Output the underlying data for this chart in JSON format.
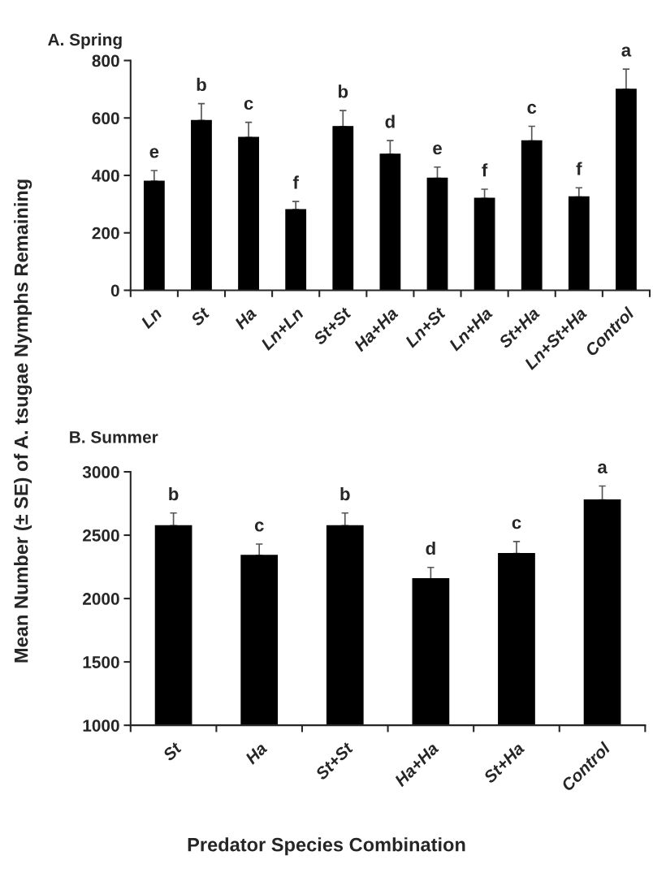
{
  "chart_data": [
    {
      "type": "bar",
      "title": "A. Spring",
      "ylabel": "Mean Number (± SE) of A. tsugae Nymphs Remaining",
      "categories": [
        "Ln",
        "St",
        "Ha",
        "Ln+Ln",
        "St+St",
        "Ha+Ha",
        "Ln+St",
        "Ln+Ha",
        "St+Ha",
        "Ln+St+Ha",
        "Control"
      ],
      "values": [
        380,
        591,
        532,
        281,
        570,
        474,
        390,
        320,
        520,
        325,
        700
      ],
      "errors": [
        37,
        59,
        53,
        28,
        56,
        47,
        39,
        32,
        51,
        32,
        70
      ],
      "color": "#000000",
      "ylim": [
        0,
        800
      ],
      "yticks": [
        0,
        200,
        400,
        600,
        800
      ],
      "grid": false,
      "annotations": [
        {
          "text": "e",
          "x": "Ln",
          "y": 380
        },
        {
          "text": "b",
          "x": "St",
          "y": 591
        },
        {
          "text": "c",
          "x": "Ha",
          "y": 532
        },
        {
          "text": "f",
          "x": "Ln+Ln",
          "y": 281
        },
        {
          "text": "b",
          "x": "St+St",
          "y": 570
        },
        {
          "text": "d",
          "x": "Ha+Ha",
          "y": 474
        },
        {
          "text": "e",
          "x": "Ln+St",
          "y": 390
        },
        {
          "text": "f",
          "x": "Ln+Ha",
          "y": 320
        },
        {
          "text": "c",
          "x": "St+Ha",
          "y": 520
        },
        {
          "text": "f",
          "x": "Ln+St+Ha",
          "y": 325
        },
        {
          "text": "a",
          "x": "Control",
          "y": 700
        }
      ]
    },
    {
      "type": "bar",
      "title": "B. Summer",
      "xlabel": "Predator Species Combination",
      "categories": [
        "St",
        "Ha",
        "St+St",
        "Ha+Ha",
        "St+Ha",
        "Control"
      ],
      "values": [
        2575,
        2340,
        2575,
        2156,
        2355,
        2778
      ],
      "errors": [
        100,
        90,
        100,
        90,
        95,
        110
      ],
      "color": "#000000",
      "ylim": [
        1000,
        3000
      ],
      "yticks": [
        1000,
        1500,
        2000,
        2500,
        3000
      ],
      "grid": false,
      "annotations": [
        {
          "text": "b",
          "x": "St",
          "y": 2575
        },
        {
          "text": "c",
          "x": "Ha",
          "y": 2340
        },
        {
          "text": "b",
          "x": "St+St",
          "y": 2575
        },
        {
          "text": "d",
          "x": "Ha+Ha",
          "y": 2156
        },
        {
          "text": "c",
          "x": "St+Ha",
          "y": 2355
        },
        {
          "text": "a",
          "x": "Control",
          "y": 2778
        }
      ]
    }
  ]
}
